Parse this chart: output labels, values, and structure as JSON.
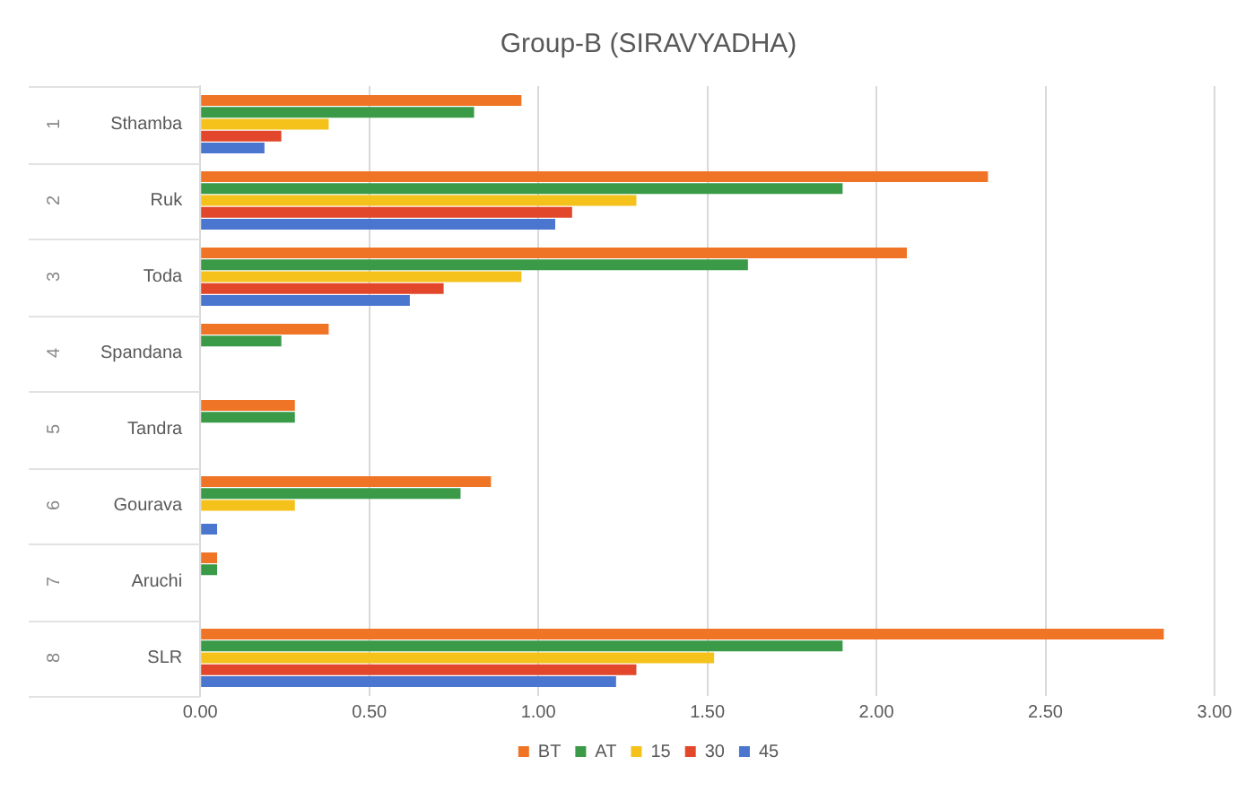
{
  "chart_data": {
    "type": "bar",
    "orientation": "horizontal",
    "title": "Group-B (SIRAVYADHA)",
    "categories": [
      "Sthamba",
      "Ruk",
      "Toda",
      "Spandana",
      "Tandra",
      "Gourava",
      "Aruchi",
      "SLR"
    ],
    "series": [
      {
        "name": "BT",
        "color": "#ef7426",
        "values": [
          0.95,
          2.33,
          2.09,
          0.38,
          0.28,
          0.86,
          0.05,
          2.85
        ]
      },
      {
        "name": "AT",
        "color": "#3a9a48",
        "values": [
          0.81,
          1.9,
          1.62,
          0.24,
          0.28,
          0.77,
          0.05,
          1.9
        ]
      },
      {
        "name": "15",
        "color": "#f4c21b",
        "values": [
          0.38,
          1.29,
          0.95,
          null,
          null,
          0.28,
          null,
          1.52
        ]
      },
      {
        "name": "30",
        "color": "#e2472c",
        "values": [
          0.24,
          1.1,
          0.72,
          null,
          null,
          null,
          null,
          1.29
        ]
      },
      {
        "name": "45",
        "color": "#4a76d0",
        "values": [
          0.19,
          1.05,
          0.62,
          null,
          null,
          0.05,
          null,
          1.23
        ]
      }
    ],
    "xlim": [
      0,
      3
    ],
    "xticks": [
      {
        "value": 0,
        "label": "0.00"
      },
      {
        "value": 0.5,
        "label": "0.50"
      },
      {
        "value": 1,
        "label": "1.00"
      },
      {
        "value": 1.5,
        "label": "1.50"
      },
      {
        "value": 2,
        "label": "2.00"
      },
      {
        "value": 2.5,
        "label": "2.50"
      },
      {
        "value": 3,
        "label": "3.00"
      }
    ],
    "grid": "x",
    "legend": "bottom",
    "annotations": [
      "1",
      "2",
      "3",
      "4",
      "5",
      "6",
      "7",
      "8"
    ]
  }
}
